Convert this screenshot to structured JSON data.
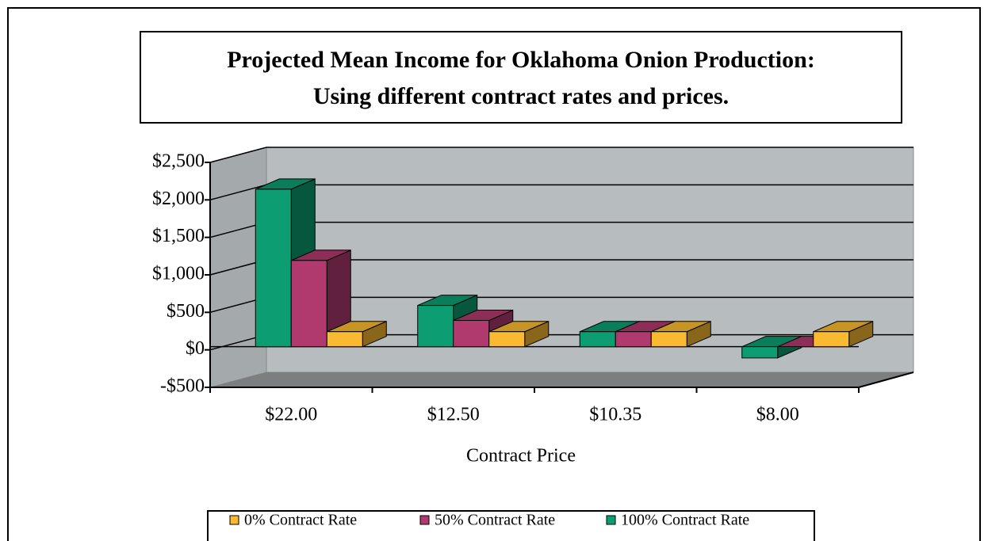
{
  "chart_data": {
    "type": "bar3d",
    "title": "Projected Mean Income for Oklahoma Onion Production:",
    "subtitle": "Using different contract rates and prices.",
    "x_label": "Contract Price",
    "categories": [
      "$22.00",
      "$12.50",
      "$10.35",
      "$8.00"
    ],
    "series": [
      {
        "name": "0% Contract Rate",
        "color": "#f9b930",
        "values": [
          200,
          200,
          200,
          200
        ]
      },
      {
        "name": "50% Contract Rate",
        "color": "#b03a6e",
        "values": [
          1150,
          350,
          200,
          0
        ]
      },
      {
        "name": "100% Contract Rate",
        "color": "#0c9e72",
        "values": [
          2100,
          550,
          200,
          -150
        ]
      }
    ],
    "ylim": [
      -500,
      2500
    ],
    "yticks": [
      {
        "value": -500,
        "label": "-$500"
      },
      {
        "value": 0,
        "label": "$0"
      },
      {
        "value": 500,
        "label": "$500"
      },
      {
        "value": 1000,
        "label": "$1,000"
      },
      {
        "value": 1500,
        "label": "$1,500"
      },
      {
        "value": 2000,
        "label": "$2,000"
      },
      {
        "value": 2500,
        "label": "$2,500"
      }
    ],
    "grid": true
  }
}
